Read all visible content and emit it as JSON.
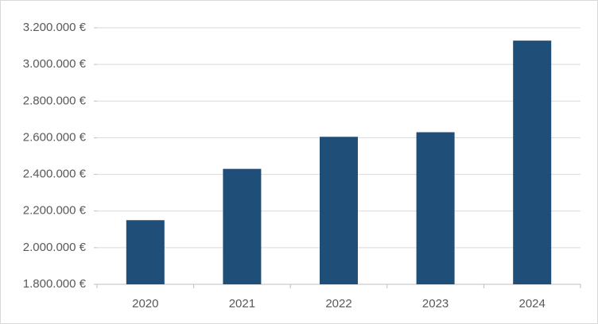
{
  "chart_data": {
    "type": "bar",
    "categories": [
      "2020",
      "2021",
      "2022",
      "2023",
      "2024"
    ],
    "values": [
      2150000,
      2430000,
      2605000,
      2630000,
      3130000
    ],
    "color": "#1f4e79",
    "ylim": [
      1800000,
      3200000
    ],
    "yticks": [
      {
        "value": 1800000,
        "label": "1.800.000 €"
      },
      {
        "value": 2000000,
        "label": "2.000.000 €"
      },
      {
        "value": 2200000,
        "label": "2.200.000 €"
      },
      {
        "value": 2400000,
        "label": "2.400.000 €"
      },
      {
        "value": 2600000,
        "label": "2.600.000 €"
      },
      {
        "value": 2800000,
        "label": "2.800.000 €"
      },
      {
        "value": 3000000,
        "label": "3.000.000 €"
      },
      {
        "value": 3200000,
        "label": "3.200.000 €"
      }
    ],
    "grid": true
  }
}
